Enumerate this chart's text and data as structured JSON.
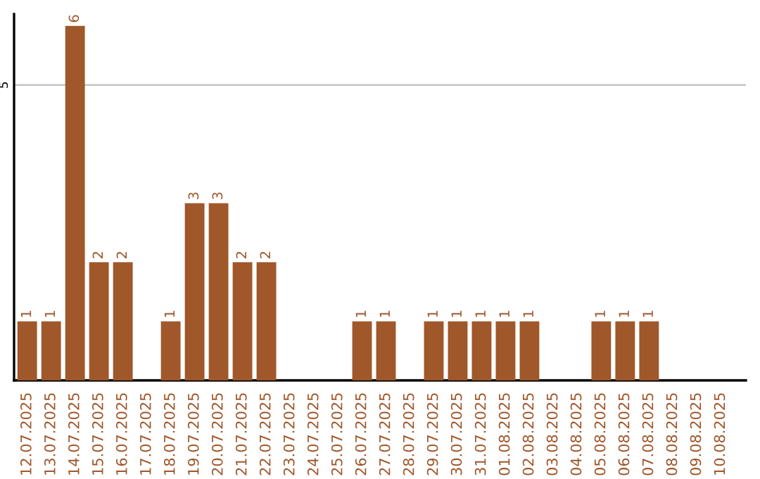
{
  "chart_data": {
    "type": "bar",
    "categories": [
      "12.07.2025",
      "13.07.2025",
      "14.07.2025",
      "15.07.2025",
      "16.07.2025",
      "17.07.2025",
      "18.07.2025",
      "19.07.2025",
      "20.07.2025",
      "21.07.2025",
      "22.07.2025",
      "23.07.2025",
      "24.07.2025",
      "25.07.2025",
      "26.07.2025",
      "27.07.2025",
      "28.07.2025",
      "29.07.2025",
      "30.07.2025",
      "31.07.2025",
      "01.08.2025",
      "02.08.2025",
      "03.08.2025",
      "04.08.2025",
      "05.08.2025",
      "06.08.2025",
      "07.08.2025",
      "08.08.2025",
      "09.08.2025",
      "10.08.2025"
    ],
    "values": [
      1,
      1,
      6,
      2,
      2,
      0,
      1,
      3,
      3,
      2,
      2,
      0,
      0,
      0,
      1,
      1,
      0,
      1,
      1,
      1,
      1,
      1,
      0,
      0,
      1,
      1,
      1,
      0,
      0,
      0
    ],
    "value_labels": [
      "1",
      "1",
      "6",
      "2",
      "2",
      null,
      "1",
      "3",
      "3",
      "2",
      "2",
      null,
      null,
      null,
      "1",
      "1",
      null,
      "1",
      "1",
      "1",
      "1",
      "1",
      null,
      null,
      "1",
      "1",
      "1",
      null,
      null,
      null
    ],
    "color": "#a0572a",
    "ylim": [
      0,
      6.2
    ],
    "yticks": [
      5
    ],
    "grid": "y"
  }
}
